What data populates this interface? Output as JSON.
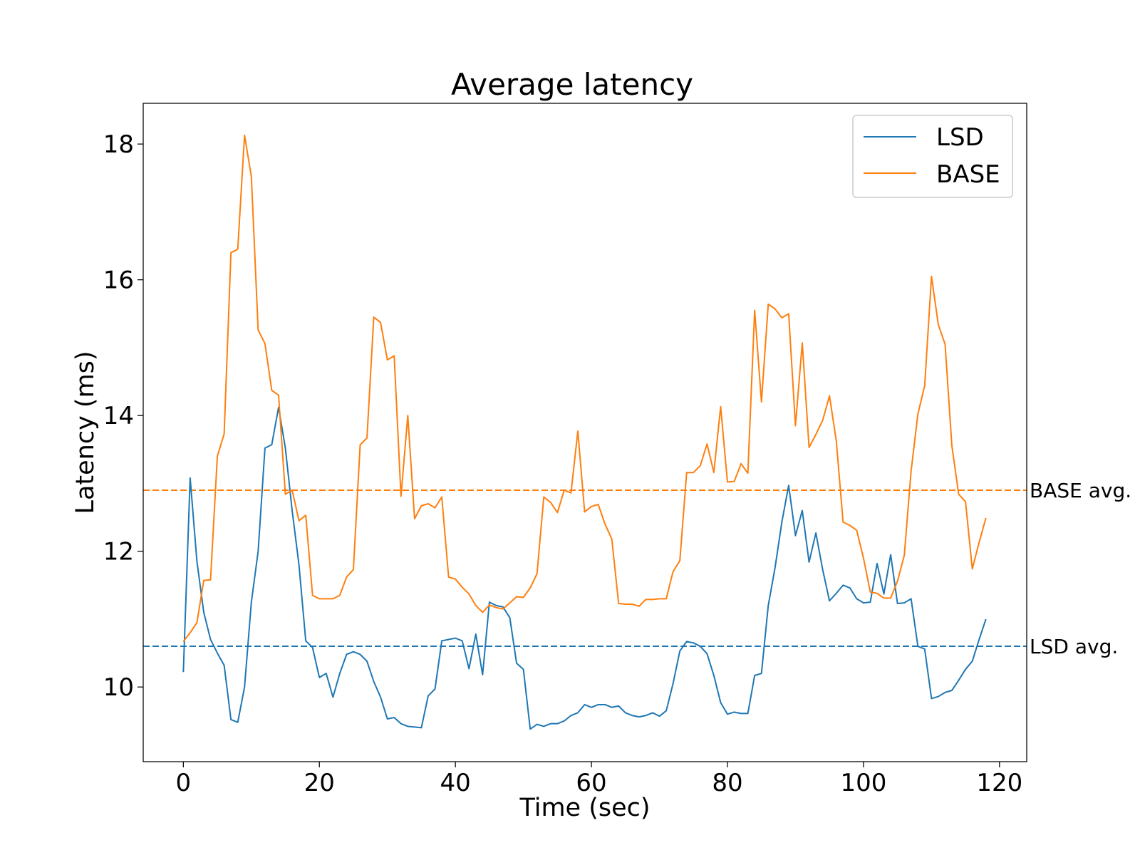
{
  "chart_data": {
    "type": "line",
    "title": "Average latency",
    "xlabel": "Time (sec)",
    "ylabel": "Latency (ms)",
    "xlim": [
      -5.9,
      124.0
    ],
    "ylim": [
      8.9,
      18.6
    ],
    "x_ticks": [
      0,
      20,
      40,
      60,
      80,
      100,
      120
    ],
    "y_ticks": [
      10,
      12,
      14,
      16,
      18
    ],
    "grid": false,
    "legend_position": "upper right",
    "x": [
      0,
      1,
      2,
      3,
      4,
      5,
      6,
      7,
      8,
      9,
      10,
      11,
      12,
      13,
      14,
      15,
      16,
      17,
      18,
      19,
      20,
      21,
      22,
      23,
      24,
      25,
      26,
      27,
      28,
      29,
      30,
      31,
      32,
      33,
      34,
      35,
      36,
      37,
      38,
      39,
      40,
      41,
      42,
      43,
      44,
      45,
      46,
      47,
      48,
      49,
      50,
      51,
      52,
      53,
      54,
      55,
      56,
      57,
      58,
      59,
      60,
      61,
      62,
      63,
      64,
      65,
      66,
      67,
      68,
      69,
      70,
      71,
      72,
      73,
      74,
      75,
      76,
      77,
      78,
      79,
      80,
      81,
      82,
      83,
      84,
      85,
      86,
      87,
      88,
      89,
      90,
      91,
      92,
      93,
      94,
      95,
      96,
      97,
      98,
      99,
      100,
      101,
      102,
      103,
      104,
      105,
      106,
      107,
      108,
      109,
      110,
      111,
      112,
      113,
      114,
      115,
      116,
      117,
      118
    ],
    "series": [
      {
        "name": "LSD",
        "color": "#1f77b4",
        "values": [
          10.22,
          13.08,
          11.85,
          11.1,
          10.7,
          10.5,
          10.32,
          9.52,
          9.48,
          10.0,
          11.25,
          12.0,
          13.52,
          13.57,
          14.12,
          13.52,
          12.6,
          11.8,
          10.68,
          10.58,
          10.14,
          10.2,
          9.85,
          10.2,
          10.48,
          10.52,
          10.48,
          10.38,
          10.08,
          9.85,
          9.53,
          9.55,
          9.46,
          9.42,
          9.41,
          9.4,
          9.87,
          9.97,
          10.68,
          10.7,
          10.72,
          10.68,
          10.27,
          10.78,
          10.18,
          11.25,
          11.2,
          11.18,
          11.02,
          10.35,
          10.26,
          9.38,
          9.45,
          9.42,
          9.46,
          9.46,
          9.5,
          9.58,
          9.62,
          9.74,
          9.7,
          9.74,
          9.74,
          9.7,
          9.72,
          9.62,
          9.58,
          9.56,
          9.58,
          9.62,
          9.57,
          9.65,
          10.05,
          10.53,
          10.67,
          10.65,
          10.6,
          10.49,
          10.17,
          9.77,
          9.6,
          9.63,
          9.61,
          9.61,
          10.17,
          10.2,
          11.2,
          11.76,
          12.43,
          12.97,
          12.23,
          12.6,
          11.84,
          12.27,
          11.73,
          11.27,
          11.38,
          11.5,
          11.46,
          11.3,
          11.24,
          11.25,
          11.82,
          11.37,
          11.95,
          11.23,
          11.24,
          11.3,
          10.6,
          10.56,
          9.83,
          9.86,
          9.92,
          9.95,
          10.1,
          10.26,
          10.38,
          10.7,
          11.0
        ]
      },
      {
        "name": "BASE",
        "color": "#ff7f0e",
        "values": [
          10.67,
          10.8,
          10.95,
          11.57,
          11.58,
          13.4,
          13.73,
          16.4,
          16.45,
          18.13,
          17.52,
          15.26,
          15.06,
          14.37,
          14.3,
          12.84,
          12.9,
          12.45,
          12.53,
          11.35,
          11.3,
          11.3,
          11.3,
          11.35,
          11.62,
          11.73,
          13.57,
          13.67,
          15.45,
          15.37,
          14.82,
          14.88,
          12.81,
          14.0,
          12.48,
          12.67,
          12.7,
          12.64,
          12.8,
          11.62,
          11.59,
          11.47,
          11.37,
          11.2,
          11.1,
          11.21,
          11.17,
          11.15,
          11.24,
          11.33,
          11.32,
          11.46,
          11.67,
          12.8,
          12.72,
          12.57,
          12.9,
          12.86,
          13.77,
          12.58,
          12.66,
          12.69,
          12.4,
          12.18,
          11.23,
          11.22,
          11.22,
          11.19,
          11.29,
          11.29,
          11.3,
          11.3,
          11.7,
          11.86,
          13.16,
          13.16,
          13.26,
          13.58,
          13.16,
          14.13,
          13.02,
          13.03,
          13.29,
          13.15,
          15.55,
          14.2,
          15.64,
          15.57,
          15.44,
          15.5,
          13.85,
          15.07,
          13.53,
          13.72,
          13.93,
          14.29,
          13.63,
          12.43,
          12.38,
          12.31,
          11.9,
          11.4,
          11.38,
          11.31,
          11.31,
          11.56,
          11.94,
          13.18,
          14.02,
          14.44,
          16.05,
          15.34,
          15.05,
          13.55,
          12.84,
          12.73,
          11.74,
          12.13,
          12.49
        ]
      }
    ],
    "reference_lines": [
      {
        "label": "BASE avg.",
        "value": 12.9,
        "color": "#ff7f0e"
      },
      {
        "label": "LSD avg.",
        "value": 10.6,
        "color": "#1f77b4"
      }
    ]
  }
}
